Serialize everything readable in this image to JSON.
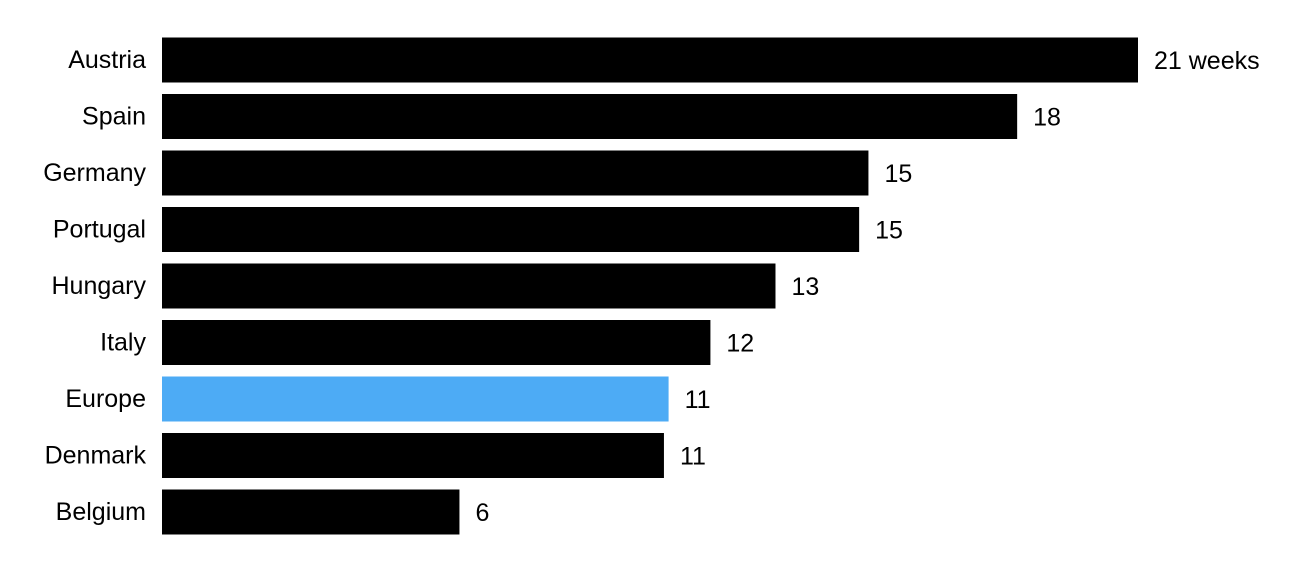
{
  "chart_data": {
    "type": "bar",
    "orientation": "horizontal",
    "categories": [
      "Austria",
      "Spain",
      "Germany",
      "Portugal",
      "Hungary",
      "Italy",
      "Europe",
      "Denmark",
      "Belgium"
    ],
    "values": [
      21.0,
      18.4,
      15.2,
      15.0,
      13.2,
      11.8,
      10.9,
      10.8,
      6.4
    ],
    "value_labels": [
      "21 weeks",
      "18",
      "15",
      "15",
      "13",
      "12",
      "11",
      "11",
      "6"
    ],
    "colors": [
      "#000000",
      "#000000",
      "#000000",
      "#000000",
      "#000000",
      "#000000",
      "#4dabf5",
      "#000000",
      "#000000"
    ],
    "xlim": [
      0,
      21
    ]
  }
}
